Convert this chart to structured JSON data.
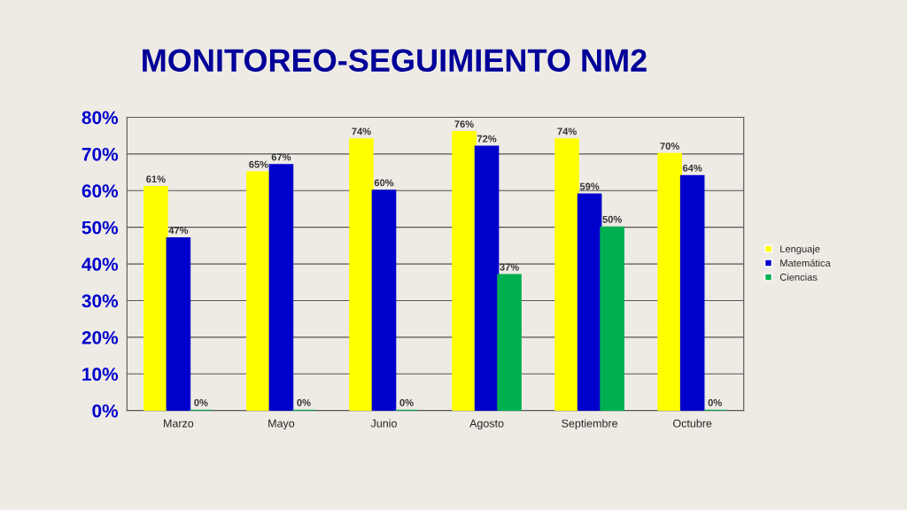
{
  "chart_data": {
    "type": "bar",
    "title": "MONITOREO-SEGUIMIENTO NM2",
    "categories": [
      "Marzo",
      "Mayo",
      "Junio",
      "Agosto",
      "Septiembre",
      "Octubre"
    ],
    "series": [
      {
        "name": "Lenguaje",
        "color": "#ffff00",
        "values": [
          61,
          65,
          74,
          76,
          74,
          70
        ],
        "value_labels": [
          "61%",
          "65%",
          "74%",
          "76%",
          "74%",
          "70%"
        ]
      },
      {
        "name": "Matemática",
        "color": "#0000cc",
        "values": [
          47,
          67,
          60,
          72,
          59,
          64
        ],
        "value_labels": [
          "47%",
          "67%",
          "60%",
          "72%",
          "59%",
          "64%"
        ]
      },
      {
        "name": "Ciencias",
        "color": "#00b050",
        "values": [
          0,
          0,
          0,
          37,
          50,
          0
        ],
        "value_labels": [
          "0%",
          "0%",
          "0%",
          "37%",
          "50%",
          "0%"
        ]
      }
    ],
    "ylim": [
      0,
      80
    ],
    "yticks": [
      {
        "value": 0,
        "label": "0%"
      },
      {
        "value": 10,
        "label": "10%"
      },
      {
        "value": 20,
        "label": "20%"
      },
      {
        "value": 30,
        "label": "30%"
      },
      {
        "value": 40,
        "label": "40%"
      },
      {
        "value": 50,
        "label": "50%"
      },
      {
        "value": 60,
        "label": "60%"
      },
      {
        "value": 70,
        "label": "70%"
      },
      {
        "value": 80,
        "label": "80%"
      }
    ],
    "grid": "y",
    "legend": "right"
  }
}
